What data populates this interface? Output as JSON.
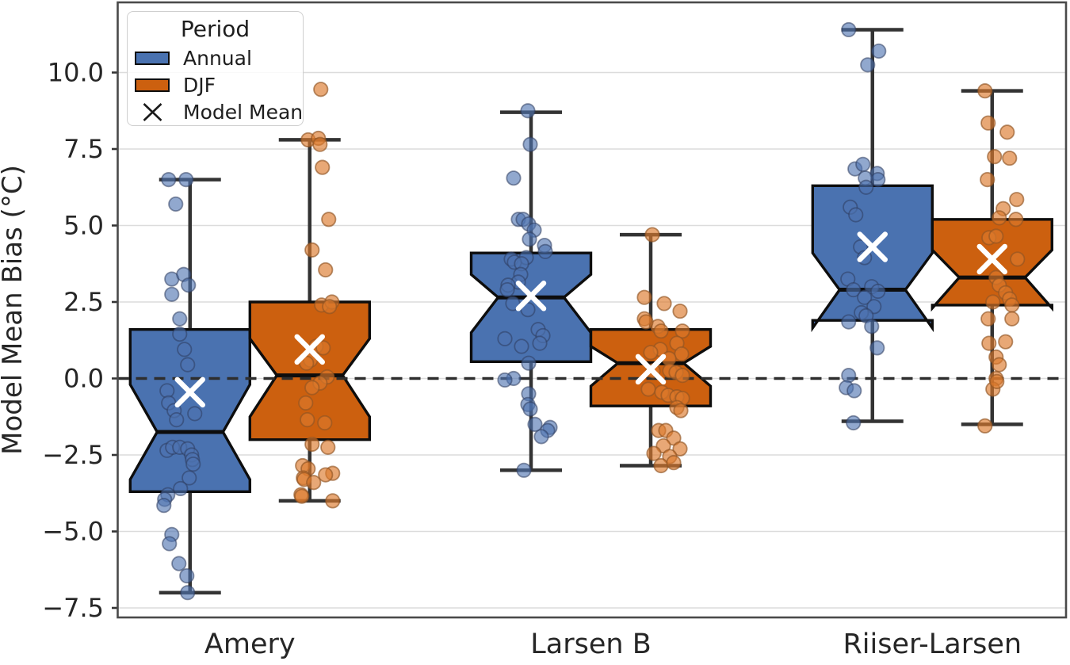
{
  "axes": {
    "ylabel": "Model Mean Bias (°C)",
    "yticks": [
      {
        "label": "10.0",
        "value": 10.0
      },
      {
        "label": "7.5",
        "value": 7.5
      },
      {
        "label": "5.0",
        "value": 5.0
      },
      {
        "label": "2.5",
        "value": 2.5
      },
      {
        "label": "0.0",
        "value": 0.0
      },
      {
        "label": "−2.5",
        "value": -2.5
      },
      {
        "label": "−5.0",
        "value": -5.0
      },
      {
        "label": "−7.5",
        "value": -7.5
      }
    ],
    "categories": [
      "Amery",
      "Larsen B",
      "Riiser-Larsen"
    ],
    "ylim": [
      -7.8,
      12.3
    ],
    "grid": "horizontal"
  },
  "legend": {
    "title": "Period",
    "position": "upper-left",
    "items": [
      {
        "label": "Annual",
        "type": "box-swatch",
        "color": "#4A72B0"
      },
      {
        "label": "DJF",
        "type": "box-swatch",
        "color": "#CC600F"
      },
      {
        "label": "Model Mean",
        "type": "x-marker",
        "color": "#1a1a1a"
      }
    ]
  },
  "style": {
    "annual_color": "#4A72B0",
    "djf_color": "#CC600F",
    "annual_point_fill": "rgba(77,114,176,0.62)",
    "annual_point_stroke": "rgba(45,60,95,0.55)",
    "djf_point_fill": "rgba(219,121,44,0.65)",
    "djf_point_stroke": "rgba(145,85,35,0.65)",
    "box_edge": "#0d0d0d",
    "whisker_color": "#333333",
    "gridline_color": "#dcdcdc",
    "spine_color": "#4a4a4a",
    "zero_line_color": "#2e2e2e",
    "mean_marker_color": "#ffffff",
    "text_color": "#262626"
  },
  "chart_data": {
    "type": "boxplot",
    "title": "",
    "ylabel": "Model Mean Bias (°C)",
    "categories": [
      "Amery",
      "Larsen B",
      "Riiser-Larsen"
    ],
    "zero_reference_line": 0.0,
    "notched": true,
    "legend_position": "upper-left",
    "series": [
      {
        "name": "Annual",
        "color": "#4A72B0",
        "boxes": [
          {
            "category": "Amery",
            "whislo": -7.0,
            "q1": -3.7,
            "med": -1.75,
            "q3": 1.6,
            "whishi": 6.5,
            "mean": -0.45,
            "notch_lo": -3.3,
            "notch_hi": -0.2,
            "points": [
              [
                -27,
                6.5
              ],
              [
                -5,
                6.5
              ],
              [
                -18,
                5.7
              ],
              [
                -23,
                3.25
              ],
              [
                -8,
                3.4
              ],
              [
                -2,
                3.05
              ],
              [
                -23,
                2.75
              ],
              [
                -13,
                1.95
              ],
              [
                -13,
                1.45
              ],
              [
                -7,
                0.95
              ],
              [
                -3,
                0.45
              ],
              [
                -29,
                -0.4
              ],
              [
                -27,
                -0.8
              ],
              [
                -20,
                -1.05
              ],
              [
                -17,
                -1.35
              ],
              [
                6,
                -1.15
              ],
              [
                -29,
                -2.35
              ],
              [
                -22,
                -2.25
              ],
              [
                -13,
                -2.25
              ],
              [
                -3,
                -2.3
              ],
              [
                2,
                -2.5
              ],
              [
                3,
                -2.65
              ],
              [
                4,
                -2.8
              ],
              [
                -1,
                -3.25
              ],
              [
                -12,
                -3.6
              ],
              [
                -28,
                -3.8
              ],
              [
                -32,
                -3.95
              ],
              [
                -33,
                -4.15
              ],
              [
                -23,
                -5.1
              ],
              [
                -26,
                -5.4
              ],
              [
                -14,
                -6.05
              ],
              [
                -4,
                -6.45
              ],
              [
                -3,
                -7.0
              ]
            ]
          },
          {
            "category": "Larsen B",
            "whislo": -3.0,
            "q1": 0.55,
            "med": 2.65,
            "q3": 4.1,
            "whishi": 8.7,
            "mean": 2.7,
            "notch_lo": 1.5,
            "notch_hi": 3.4,
            "points": [
              [
                -4,
                8.75
              ],
              [
                -1,
                7.65
              ],
              [
                -22,
                6.55
              ],
              [
                -16,
                5.2
              ],
              [
                -10,
                5.2
              ],
              [
                -3,
                5.05
              ],
              [
                4,
                4.85
              ],
              [
                -2,
                4.55
              ],
              [
                17,
                4.35
              ],
              [
                18,
                4.15
              ],
              [
                -6,
                3.95
              ],
              [
                -25,
                3.9
              ],
              [
                -21,
                3.8
              ],
              [
                -12,
                3.75
              ],
              [
                -13,
                3.4
              ],
              [
                -16,
                3.15
              ],
              [
                -29,
                3.05
              ],
              [
                -30,
                2.9
              ],
              [
                -23,
                2.45
              ],
              [
                -4,
                2.25
              ],
              [
                9,
                1.6
              ],
              [
                15,
                1.4
              ],
              [
                11,
                1.15
              ],
              [
                -12,
                1.05
              ],
              [
                -33,
                1.3
              ],
              [
                -3,
                0.5
              ],
              [
                -22,
                0.0
              ],
              [
                -33,
                -0.05
              ],
              [
                -3,
                -0.5
              ],
              [
                -4,
                -0.85
              ],
              [
                -1,
                -1.0
              ],
              [
                5,
                -1.5
              ],
              [
                24,
                -1.6
              ],
              [
                21,
                -1.7
              ],
              [
                13,
                -1.9
              ],
              [
                -9,
                -3.0
              ]
            ]
          },
          {
            "category": "Riiser-Larsen",
            "whislo": -1.4,
            "q1": 1.9,
            "med": 2.9,
            "q3": 6.3,
            "whishi": 11.4,
            "mean": 4.3,
            "notch_lo": 1.65,
            "notch_hi": 4.1,
            "points": [
              [
                -30,
                11.4
              ],
              [
                8,
                10.7
              ],
              [
                -6,
                10.25
              ],
              [
                -22,
                6.85
              ],
              [
                -12,
                7.0
              ],
              [
                6,
                6.7
              ],
              [
                7,
                6.5
              ],
              [
                -9,
                6.55
              ],
              [
                -8,
                6.25
              ],
              [
                -28,
                5.6
              ],
              [
                -21,
                5.35
              ],
              [
                -15,
                4.3
              ],
              [
                -10,
                3.95
              ],
              [
                -31,
                3.25
              ],
              [
                -24,
                2.9
              ],
              [
                -1,
                3.0
              ],
              [
                7,
                2.85
              ],
              [
                -10,
                2.65
              ],
              [
                2,
                2.35
              ],
              [
                -14,
                2.15
              ],
              [
                -8,
                2.05
              ],
              [
                -30,
                1.85
              ],
              [
                -1,
                1.7
              ],
              [
                6,
                1.0
              ],
              [
                -30,
                0.1
              ],
              [
                -33,
                -0.3
              ],
              [
                -23,
                -0.4
              ],
              [
                -24,
                -1.45
              ]
            ]
          }
        ]
      },
      {
        "name": "DJF",
        "color": "#CC600F",
        "boxes": [
          {
            "category": "Amery",
            "whislo": -4.0,
            "q1": -2.0,
            "med": 0.1,
            "q3": 2.5,
            "whishi": 7.8,
            "mean": 0.95,
            "notch_lo": -1.25,
            "notch_hi": 1.3,
            "points": [
              [
                14,
                9.45
              ],
              [
                -2,
                7.8
              ],
              [
                11,
                7.85
              ],
              [
                13,
                7.65
              ],
              [
                16,
                6.9
              ],
              [
                24,
                5.2
              ],
              [
                3,
                4.2
              ],
              [
                20,
                3.55
              ],
              [
                15,
                2.4
              ],
              [
                28,
                2.5
              ],
              [
                25,
                2.35
              ],
              [
                8,
                1.05
              ],
              [
                17,
                1.0
              ],
              [
                1,
                0.6
              ],
              [
                -4,
                0.5
              ],
              [
                22,
                0.05
              ],
              [
                13,
                -0.15
              ],
              [
                3,
                -0.3
              ],
              [
                -5,
                -0.8
              ],
              [
                -3,
                -1.35
              ],
              [
                19,
                -1.45
              ],
              [
                3,
                -2.15
              ],
              [
                23,
                -2.25
              ],
              [
                -9,
                -2.85
              ],
              [
                -2,
                -2.95
              ],
              [
                29,
                -3.1
              ],
              [
                20,
                -3.15
              ],
              [
                -8,
                -3.25
              ],
              [
                -7,
                -3.3
              ],
              [
                5,
                -3.4
              ],
              [
                -11,
                -3.8
              ],
              [
                -10,
                -3.85
              ],
              [
                29,
                -4.0
              ]
            ]
          },
          {
            "category": "Larsen B",
            "whislo": -2.85,
            "q1": -0.9,
            "med": 0.5,
            "q3": 1.6,
            "whishi": 4.7,
            "mean": 0.3,
            "notch_lo": -0.25,
            "notch_hi": 1.05,
            "points": [
              [
                2,
                4.7
              ],
              [
                -8,
                2.65
              ],
              [
                17,
                2.45
              ],
              [
                37,
                2.2
              ],
              [
                9,
                1.7
              ],
              [
                13,
                1.55
              ],
              [
                40,
                1.55
              ],
              [
                -8,
                1.95
              ],
              [
                -6,
                1.85
              ],
              [
                12,
                0.95
              ],
              [
                33,
                1.15
              ],
              [
                39,
                0.8
              ],
              [
                23,
                0.65
              ],
              [
                0,
                0.85
              ],
              [
                3,
                0.25
              ],
              [
                24,
                0.25
              ],
              [
                32,
                0.2
              ],
              [
                40,
                0.1
              ],
              [
                -3,
                -0.35
              ],
              [
                14,
                -0.45
              ],
              [
                22,
                -0.55
              ],
              [
                33,
                -0.6
              ],
              [
                40,
                -0.65
              ],
              [
                33,
                -0.95
              ],
              [
                38,
                -1.05
              ],
              [
                10,
                -1.7
              ],
              [
                19,
                -1.7
              ],
              [
                29,
                -1.95
              ],
              [
                37,
                -2.3
              ],
              [
                16,
                -2.2
              ],
              [
                4,
                -2.45
              ],
              [
                24,
                -2.55
              ],
              [
                13,
                -2.85
              ],
              [
                29,
                -2.75
              ]
            ]
          },
          {
            "category": "Riiser-Larsen",
            "whislo": -1.5,
            "q1": 2.4,
            "med": 3.3,
            "q3": 5.2,
            "whishi": 9.4,
            "mean": 3.9,
            "notch_lo": 2.3,
            "notch_hi": 4.2,
            "points": [
              [
                -9,
                9.4
              ],
              [
                -5,
                8.35
              ],
              [
                19,
                8.05
              ],
              [
                3,
                7.25
              ],
              [
                22,
                7.2
              ],
              [
                -6,
                6.5
              ],
              [
                31,
                5.85
              ],
              [
                14,
                5.55
              ],
              [
                9,
                5.25
              ],
              [
                30,
                5.2
              ],
              [
                -4,
                4.6
              ],
              [
                5,
                4.65
              ],
              [
                32,
                3.9
              ],
              [
                5,
                3.3
              ],
              [
                9,
                3.05
              ],
              [
                17,
                2.8
              ],
              [
                22,
                2.6
              ],
              [
                1,
                2.5
              ],
              [
                25,
                2.4
              ],
              [
                -5,
                1.95
              ],
              [
                25,
                1.95
              ],
              [
                17,
                1.2
              ],
              [
                -4,
                1.15
              ],
              [
                5,
                0.7
              ],
              [
                9,
                0.45
              ],
              [
                5,
                0.0
              ],
              [
                1,
                -0.35
              ],
              [
                6,
                -0.1
              ],
              [
                -9,
                -1.55
              ]
            ]
          }
        ]
      }
    ]
  }
}
